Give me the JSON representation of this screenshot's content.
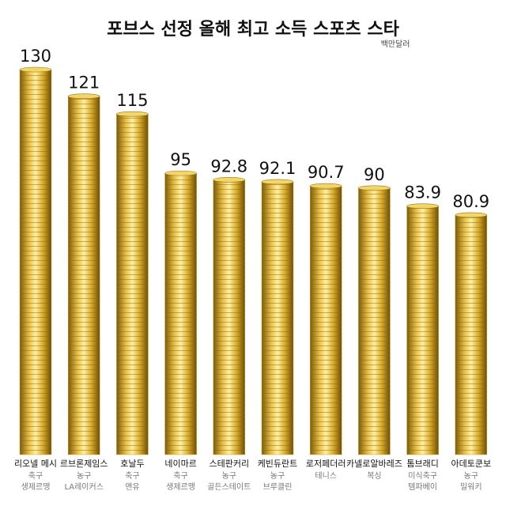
{
  "chart_data": {
    "type": "bar",
    "title": "포브스 선정 올해 최고 소득 스포츠 스타",
    "unit": "백만달러",
    "categories": [
      "리오넬 메시",
      "르브론제임스",
      "호날두",
      "네이마르",
      "스테판커리",
      "케빈듀란트",
      "로저페더러",
      "카넬로알바레즈",
      "톰브래디",
      "아데토쿤보"
    ],
    "sport": [
      "축구",
      "농구",
      "축구",
      "축구",
      "농구",
      "농구",
      "테니스",
      "복싱",
      "미식축구",
      "농구"
    ],
    "team": [
      "생제르맹",
      "LA레이커스",
      "맨유",
      "생제르맹",
      "골든스테이트",
      "브루클린",
      null,
      null,
      "템파베이",
      "밀워키"
    ],
    "values": [
      130,
      121,
      115,
      95,
      92.8,
      92.1,
      90.7,
      90,
      83.9,
      80.9
    ],
    "color": "#d4a625",
    "ylim": [
      0,
      130
    ]
  }
}
